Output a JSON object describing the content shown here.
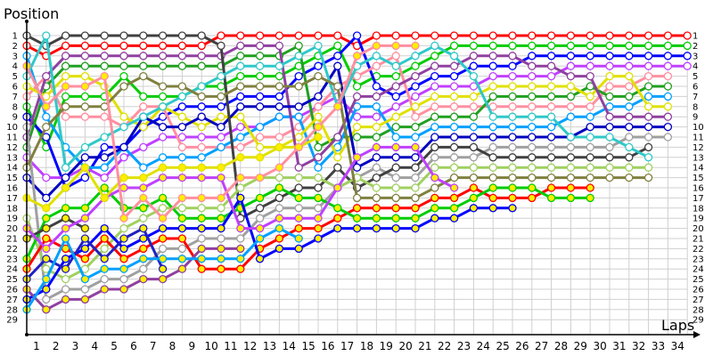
{
  "chart_data": {
    "type": "line",
    "title": "",
    "ylabel": "Position",
    "xlabel": "Laps",
    "x_ticks": [
      1,
      2,
      3,
      4,
      5,
      6,
      7,
      8,
      9,
      10,
      11,
      12,
      13,
      14,
      15,
      16,
      17,
      18,
      19,
      20,
      21,
      22,
      23,
      24,
      25,
      26,
      27,
      28,
      29,
      30,
      31,
      32,
      33,
      34
    ],
    "y_ticks": [
      1,
      2,
      3,
      4,
      5,
      6,
      7,
      8,
      9,
      10,
      11,
      12,
      13,
      14,
      15,
      16,
      17,
      18,
      19,
      20,
      21,
      22,
      23,
      24,
      25,
      26,
      27,
      28,
      29
    ],
    "xlim": [
      0,
      34
    ],
    "ylim": [
      29,
      1
    ],
    "y_inverted": true,
    "grid": true,
    "y_labels_both_sides": true,
    "series": [
      {
        "color": "#ff0000",
        "marker_fill": "#ffffff",
        "positions": [
          2,
          3,
          2,
          2,
          2,
          2,
          2,
          2,
          2,
          2,
          1,
          1,
          1,
          1,
          1,
          1,
          1,
          2,
          1,
          1,
          1,
          1,
          1,
          1,
          1,
          1,
          1,
          1,
          1,
          1,
          1,
          1,
          1,
          1,
          1
        ]
      },
      {
        "color": "#00cc00",
        "marker_fill": "#ffffff",
        "positions": [
          8,
          12,
          7,
          7,
          7,
          5,
          7,
          7,
          7,
          6,
          6,
          5,
          5,
          5,
          4,
          3,
          2,
          6,
          5,
          5,
          4,
          3,
          2,
          2,
          2,
          2,
          2,
          2,
          2,
          2,
          2,
          2,
          2,
          2,
          2
        ]
      },
      {
        "color": "#0000ff",
        "marker_fill": "#ffffff",
        "positions": [
          9,
          11,
          16,
          15,
          12,
          12,
          10,
          9,
          8,
          8,
          8,
          7,
          7,
          7,
          5,
          4,
          3,
          1,
          6,
          7,
          6,
          5,
          5,
          4,
          4,
          4,
          3,
          3,
          3,
          3,
          3,
          3,
          3,
          3,
          3
        ]
      },
      {
        "color": "#c040ff",
        "marker_fill": "#ffffff",
        "positions": [
          13,
          15,
          15,
          14,
          15,
          13,
          12,
          11,
          11,
          11,
          11,
          10,
          10,
          9,
          9,
          8,
          7,
          9,
          9,
          8,
          7,
          6,
          6,
          6,
          5,
          5,
          5,
          5,
          4,
          4,
          4,
          4,
          4,
          4,
          4
        ]
      },
      {
        "color": "#ff8fa0",
        "marker_fill": "#ffffff",
        "positions": [
          7,
          5,
          9,
          9,
          9,
          10,
          8,
          8,
          12,
          12,
          12,
          12,
          11,
          11,
          10,
          8,
          6,
          5,
          4,
          3,
          9,
          8,
          8,
          8,
          8,
          8,
          8,
          8,
          8,
          8,
          6,
          6,
          5,
          5
        ]
      },
      {
        "color": "#20a020",
        "marker_fill": "#ffffff",
        "positions": [
          12,
          6,
          4,
          4,
          4,
          4,
          4,
          4,
          4,
          4,
          4,
          3,
          3,
          3,
          2,
          12,
          11,
          11,
          11,
          10,
          10,
          9,
          9,
          9,
          7,
          7,
          7,
          7,
          7,
          6,
          7,
          7,
          6,
          6
        ]
      },
      {
        "color": "#00a0ff",
        "marker_fill": "#ffffff",
        "positions": [
          3,
          9,
          12,
          14,
          14,
          12,
          14,
          13,
          13,
          13,
          12,
          11,
          10,
          9,
          9,
          14,
          12,
          8,
          8,
          11,
          11,
          10,
          10,
          10,
          10,
          10,
          10,
          10,
          9,
          9,
          8,
          8,
          7,
          7
        ]
      },
      {
        "color": "#e0e000",
        "marker_fill": "#ffffff",
        "positions": [
          6,
          7,
          5,
          5,
          6,
          9,
          10,
          8,
          9,
          10,
          9,
          9,
          12,
          12,
          11,
          9,
          13,
          10,
          10,
          9,
          8,
          7,
          7,
          7,
          6,
          6,
          6,
          6,
          6,
          7,
          5,
          5,
          8,
          8
        ]
      },
      {
        "color": "#9040a0",
        "marker_fill": "#ffffff",
        "positions": [
          11,
          5,
          3,
          3,
          3,
          3,
          3,
          3,
          3,
          3,
          3,
          2,
          2,
          2,
          14,
          13,
          11,
          7,
          7,
          6,
          5,
          4,
          4,
          3,
          3,
          3,
          4,
          4,
          5,
          5,
          9,
          9,
          9,
          9
        ]
      },
      {
        "color": "#0000c0",
        "marker_fill": "#ffffff",
        "positions": [
          15,
          17,
          15,
          13,
          13,
          12,
          9,
          10,
          10,
          9,
          10,
          8,
          8,
          8,
          8,
          7,
          4,
          14,
          13,
          13,
          13,
          11,
          11,
          11,
          11,
          11,
          11,
          11,
          11,
          10,
          10,
          10,
          10,
          10
        ]
      },
      {
        "color": "#a0a0a0",
        "marker_fill": "#ffffff",
        "positions": [
          10,
          27,
          26,
          26,
          25,
          25,
          24,
          22,
          22,
          21,
          21,
          21,
          19,
          18,
          18,
          18,
          16,
          15,
          14,
          15,
          15,
          13,
          13,
          13,
          12,
          12,
          12,
          12,
          12,
          12,
          12,
          11,
          11,
          11
        ]
      },
      {
        "color": "#404040",
        "marker_fill": "#ffffff",
        "positions": [
          1,
          2,
          1,
          1,
          1,
          1,
          1,
          1,
          1,
          1,
          2,
          19,
          18,
          17,
          16,
          16,
          14,
          16,
          15,
          14,
          14,
          12,
          12,
          12,
          13,
          13,
          13,
          13,
          13,
          13,
          13,
          13,
          12
        ]
      },
      {
        "color": "#30c8c8",
        "marker_fill": "#ffffff",
        "positions": [
          5,
          1,
          14,
          12,
          11,
          10,
          9,
          8,
          7,
          6,
          5,
          4,
          4,
          4,
          3,
          2,
          8,
          4,
          3,
          4,
          3,
          2,
          3,
          5,
          9,
          9,
          9,
          9,
          11,
          11,
          11,
          12,
          13
        ]
      },
      {
        "color": "#a0d060",
        "marker_fill": "#ffffff",
        "positions": [
          19,
          24,
          25,
          24,
          22,
          20,
          19,
          18,
          18,
          18,
          18,
          16,
          15,
          15,
          15,
          15,
          16,
          15,
          16,
          16,
          16,
          14,
          14,
          14,
          14,
          14,
          14,
          14,
          14,
          14,
          14,
          14,
          14
        ]
      },
      {
        "color": "#808040",
        "marker_fill": "#ffffff",
        "positions": [
          14,
          10,
          8,
          8,
          8,
          6,
          5,
          6,
          6,
          7,
          7,
          6,
          6,
          6,
          6,
          5,
          6,
          17,
          17,
          17,
          17,
          16,
          15,
          15,
          15,
          15,
          15,
          15,
          15,
          15,
          15,
          15,
          15
        ]
      },
      {
        "color": "#ff0000",
        "marker_fill": "#ffee00",
        "positions": [
          24,
          21,
          22,
          23,
          21,
          23,
          22,
          21,
          21,
          24,
          24,
          24,
          22,
          21,
          20,
          20,
          19,
          18,
          18,
          18,
          18,
          17,
          17,
          16,
          17,
          17,
          17,
          16,
          16,
          16
        ]
      },
      {
        "color": "#00cc00",
        "marker_fill": "#ffee00",
        "positions": [
          23,
          19,
          18,
          18,
          16,
          18,
          18,
          17,
          19,
          19,
          19,
          18,
          17,
          16,
          17,
          17,
          18,
          19,
          19,
          19,
          19,
          18,
          18,
          17,
          16,
          16,
          16,
          17,
          17,
          17
        ]
      },
      {
        "color": "#0000ff",
        "marker_fill": "#ffee00",
        "positions": [
          27,
          26,
          23,
          22,
          20,
          22,
          21,
          20,
          20,
          20,
          20,
          17,
          23,
          22,
          22,
          21,
          20,
          20,
          20,
          20,
          20,
          19,
          19,
          18,
          18,
          18
        ]
      },
      {
        "color": "#2020c0",
        "marker_fill": "#ffee00",
        "positions": [
          25,
          23,
          24,
          21,
          23,
          21,
          20,
          24
        ]
      },
      {
        "color": "#9040a0",
        "marker_fill": "#ffee00",
        "positions": [
          26,
          28,
          27,
          27,
          26,
          26,
          25,
          25,
          24,
          22,
          22,
          22
        ]
      },
      {
        "color": "#00a0ff",
        "marker_fill": "#ffee00",
        "positions": [
          28,
          25,
          21,
          25,
          24,
          24,
          23,
          23,
          23,
          23,
          23,
          23,
          21,
          20,
          21
        ]
      },
      {
        "color": "#404040",
        "marker_fill": "#ffee00",
        "positions": [
          21,
          20,
          19,
          20
        ]
      },
      {
        "color": "#c040ff",
        "marker_fill": "#ffee00",
        "positions": [
          20,
          22,
          20,
          19,
          17,
          16,
          16,
          15,
          15,
          15,
          15,
          20,
          20,
          19,
          19,
          19,
          16,
          13,
          12,
          12,
          12,
          15,
          16
        ]
      },
      {
        "color": "#e0e000",
        "marker_fill": "#ffee00",
        "positions": [
          17,
          18,
          16,
          14,
          17,
          15,
          15,
          14,
          14,
          14,
          14,
          13,
          13,
          12,
          12,
          11
        ]
      },
      {
        "color": "#ff8fa0",
        "marker_fill": "#ffee00",
        "positions": [
          4,
          8,
          6,
          6,
          5,
          19,
          17,
          19,
          17,
          17,
          17,
          15,
          15,
          14,
          12,
          10,
          8,
          3,
          2,
          2,
          2
        ]
      }
    ]
  }
}
